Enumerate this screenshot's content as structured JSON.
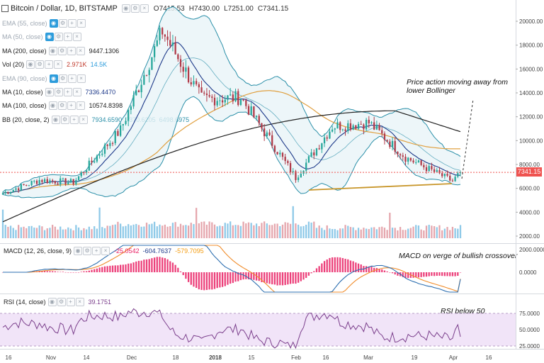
{
  "header": {
    "title": "Bitcoin / Dollar, 1D, BITSTAMP",
    "ohlc": [
      {
        "k": "O",
        "v": "7415.53"
      },
      {
        "k": "H",
        "v": "7430.00"
      },
      {
        "k": "L",
        "v": "7251.00"
      },
      {
        "k": "C",
        "v": "7341.15"
      }
    ]
  },
  "indicators": [
    {
      "label": "EMA (55, close)",
      "hidden": true,
      "values": []
    },
    {
      "label": "MA (50, close)",
      "hidden": true,
      "values": []
    },
    {
      "label": "MA (200, close)",
      "hidden": false,
      "values": [
        {
          "v": "9447.1306",
          "color": "#222222"
        }
      ]
    },
    {
      "label": "Vol (20)",
      "hidden": false,
      "values": [
        {
          "v": "2.971K",
          "color": "#c0392b"
        },
        {
          "v": "14.5K",
          "color": "#2d9cdb"
        }
      ]
    },
    {
      "label": "EMA (90, close)",
      "hidden": true,
      "values": []
    },
    {
      "label": "MA (10, close)",
      "hidden": false,
      "values": [
        {
          "v": "7336.4470",
          "color": "#1e3a8a"
        }
      ]
    },
    {
      "label": "MA (100, close)",
      "hidden": false,
      "values": [
        {
          "v": "10574.8398",
          "color": "#222222"
        }
      ]
    },
    {
      "label": "BB (20, close, 2)",
      "hidden": false,
      "values": [
        {
          "v": "7934.6590",
          "color": "#2a8fa8"
        },
        {
          "v": "9370.6205",
          "color": "#2a8fa8"
        },
        {
          "v": "6498.6975",
          "color": "#2a8fa8"
        }
      ]
    }
  ],
  "macd": {
    "label": "MACD (12, 26, close, 9)",
    "values": [
      {
        "v": "-25.0542",
        "color": "#e91e63"
      },
      {
        "v": "-604.7637",
        "color": "#1e3a8a"
      },
      {
        "v": "-579.7095",
        "color": "#f39c12"
      }
    ]
  },
  "rsi": {
    "label": "RSI (14, close)",
    "values": [
      {
        "v": "39.1751",
        "color": "#7b3f8c"
      }
    ]
  },
  "annotations": {
    "price": "Price action moving away from\nlower Bollinger",
    "macd": "MACD on verge of bullish crossover",
    "rsi": "RSI below 50"
  },
  "price_tag": "7341.15",
  "price_axis": [
    "20000.00",
    "18000.00",
    "16000.00",
    "14000.00",
    "12000.00",
    "10000.00",
    "8000.00",
    "6000.00",
    "4000.00",
    "2000.00"
  ],
  "macd_axis": [
    "2000.0000",
    "0.0000"
  ],
  "rsi_axis": [
    "75.0000",
    "50.0000",
    "25.0000"
  ],
  "time_axis": [
    "16",
    "Nov",
    "14",
    "Dec",
    "18",
    "2018",
    "15",
    "Feb",
    "16",
    "Mar",
    "19",
    "Apr",
    "16"
  ],
  "colors": {
    "up": "#26a69a",
    "down": "#b03a48",
    "upDim": "#6fb7a5",
    "downDim": "#c95a63",
    "bb": "#2a8fa8",
    "ma10": "#1e3a8a",
    "ma100": "#e0a040",
    "ma200": "#222222",
    "trend": "#c8962a",
    "volUp": "#8ec9e8",
    "volDown": "#e5a6ad",
    "macd": "#2d6fb0",
    "signal": "#f08c2b",
    "hist": "#e91e63",
    "rsiLine": "#7b3f8c",
    "rsiBand": "#f1e4f8"
  },
  "chart_data": {
    "type": "candlestick",
    "title": "Bitcoin / Dollar, 1D, BITSTAMP",
    "price_range": [
      2000,
      20000
    ],
    "last_close": 7341.15,
    "monthly_path": [
      {
        "date": "Oct 16",
        "close": 5600
      },
      {
        "date": "Nov 1",
        "close": 6700
      },
      {
        "date": "Nov 14",
        "close": 6500
      },
      {
        "date": "Dec 1",
        "close": 10900
      },
      {
        "date": "Dec 17",
        "close": 19200
      },
      {
        "date": "Jan 1",
        "close": 13500
      },
      {
        "date": "Jan 15",
        "close": 13600
      },
      {
        "date": "Feb 6",
        "close": 6900
      },
      {
        "date": "Feb 20",
        "close": 11200
      },
      {
        "date": "Mar 5",
        "close": 11500
      },
      {
        "date": "Mar 19",
        "close": 8600
      },
      {
        "date": "Apr 6",
        "close": 6600
      },
      {
        "date": "Apr 10",
        "close": 7341
      }
    ],
    "macd": {
      "macd": -604.7637,
      "signal": -579.7095,
      "histogram": -25.0542
    },
    "rsi": {
      "value": 39.1751,
      "bands": [
        75,
        50,
        25
      ]
    }
  }
}
